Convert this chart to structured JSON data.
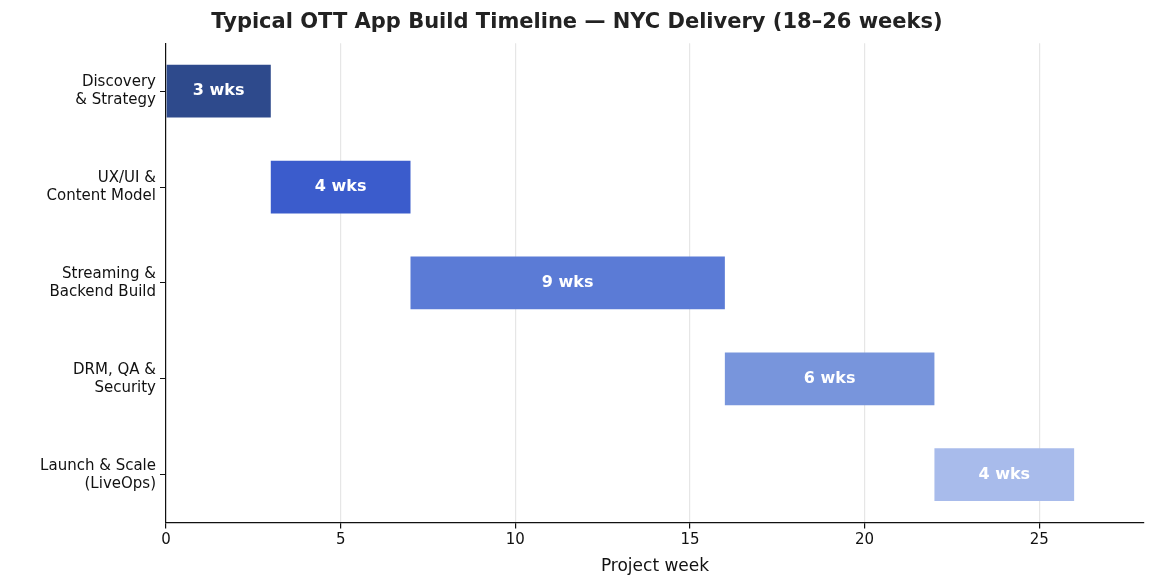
{
  "chart_data": {
    "type": "bar",
    "orientation": "horizontal",
    "title": "Typical OTT App Build Timeline — NYC Delivery (18–26 weeks)",
    "xlabel": "Project week",
    "categories": [
      "Discovery & Strategy",
      "UX/UI & Content Model",
      "Streaming & Backend Build",
      "DRM, QA & Security",
      "Launch & Scale (LiveOps)"
    ],
    "base": [
      0,
      3,
      7,
      16,
      22
    ],
    "values": [
      3,
      4,
      9,
      6,
      4
    ],
    "colors": [
      "#2e4a8c",
      "#3b5ccc",
      "#5b7bd6",
      "#7895dc",
      "#a8bbeb"
    ],
    "value_labels": [
      "3 wks",
      "4 wks",
      "9 wks",
      "6 wks",
      "4 wks"
    ],
    "xlim": [
      0,
      28
    ],
    "xticks": [
      0,
      5,
      10,
      15,
      20,
      25
    ],
    "grid": "x",
    "legend": false
  }
}
